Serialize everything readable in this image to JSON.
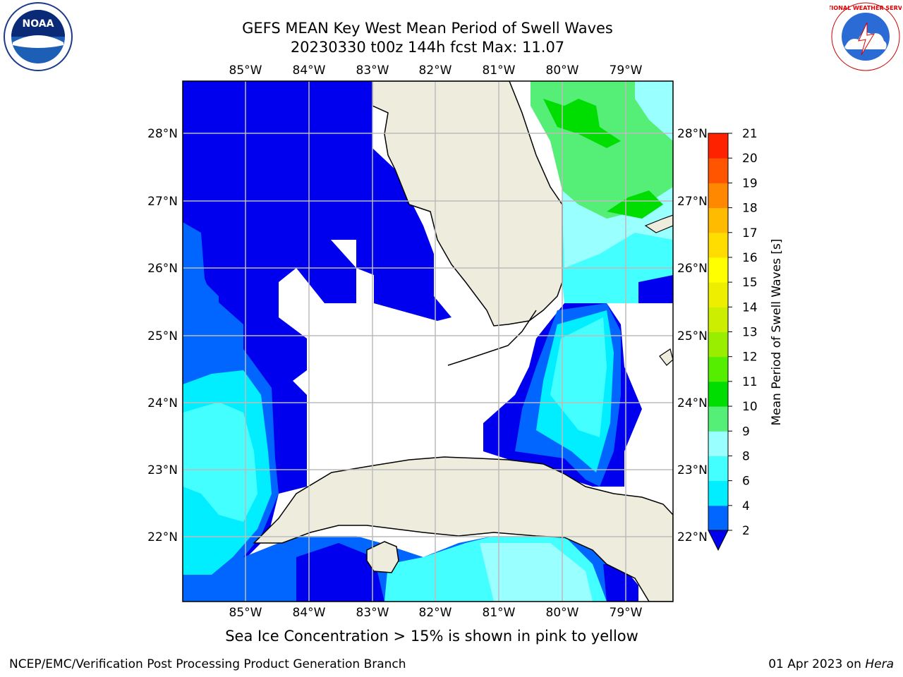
{
  "header": {
    "title_line1": "GEFS MEAN Key West Mean Period of Swell Waves",
    "title_line2": "20230330 t00z 144h fcst   Max: 11.07"
  },
  "logos": {
    "left": "noaa-logo",
    "left_text": "NOAA",
    "right": "national-weather-service-logo",
    "right_text": "NATIONAL WEATHER SERVICE"
  },
  "map": {
    "lon_labels": [
      "85°W",
      "84°W",
      "83°W",
      "82°W",
      "81°W",
      "80°W",
      "79°W"
    ],
    "lat_labels": [
      "28°N",
      "27°N",
      "26°N",
      "25°N",
      "24°N",
      "23°N",
      "22°N"
    ],
    "land_color": "#eeecdc",
    "grid_color": "#bbbbbb"
  },
  "colorbar": {
    "label": "Mean Period of Swell Waves [s]",
    "ticks": [
      "2",
      "4",
      "6",
      "8",
      "9",
      "10",
      "11",
      "12",
      "13",
      "14",
      "15",
      "16",
      "17",
      "18",
      "19",
      "20",
      "21"
    ],
    "colors": [
      "#0066ff",
      "#00eeff",
      "#44ffff",
      "#99ffff",
      "#55ee77",
      "#00dd00",
      "#55ee00",
      "#99ee00",
      "#ccee00",
      "#eeee00",
      "#ffff00",
      "#ffdd00",
      "#ffbb00",
      "#ff8800",
      "#ff5500",
      "#ff2200"
    ],
    "under_color": "#0000ee"
  },
  "caption": "Sea Ice Concentration > 15% is shown in pink to yellow",
  "footer": {
    "left": "NCEP/EMC/Verification Post Processing Product Generation Branch",
    "date": "01 Apr 2023 on",
    "machine": "Hera"
  }
}
